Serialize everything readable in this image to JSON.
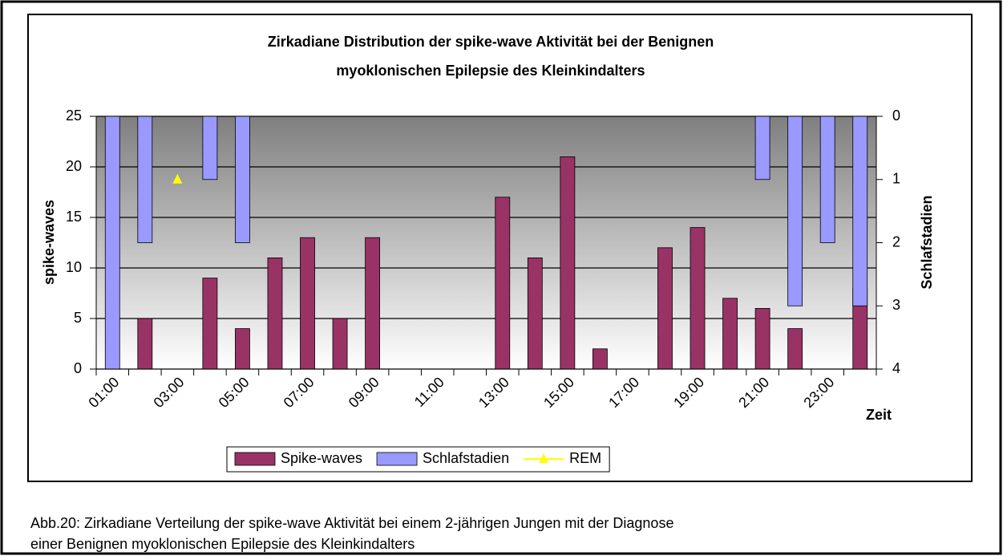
{
  "chart_data": {
    "type": "bar",
    "title": [
      "Zirkadiane Distribution der spike-wave Aktivität bei der Benignen",
      "myoklonischen Epilepsie des Kleinkindalters"
    ],
    "y_label": "spike-waves",
    "y2_label": "Schlafstadien",
    "x_label": "Zeit",
    "categories": [
      "01:00",
      null,
      "03:00",
      null,
      "05:00",
      null,
      "07:00",
      null,
      "09:00",
      null,
      "11:00",
      null,
      "13:00",
      null,
      "15:00",
      null,
      "17:00",
      null,
      "19:00",
      null,
      "21:00",
      null,
      "23:00",
      null
    ],
    "series": [
      {
        "name": "Spike-waves",
        "type": "bar",
        "color": "#993366",
        "values": [
          0,
          5,
          0,
          9,
          4,
          11,
          13,
          5,
          13,
          0,
          0,
          0,
          17,
          11,
          21,
          2,
          0,
          12,
          14,
          7,
          6,
          4,
          0,
          8
        ]
      },
      {
        "name": "Schlafstadien",
        "type": "bar",
        "axis": "y2",
        "color": "#9999ff",
        "values": [
          4,
          2,
          0,
          1,
          2,
          0,
          0,
          0,
          0,
          0,
          0,
          0,
          0,
          0,
          0,
          0,
          0,
          0,
          0,
          0,
          1,
          3,
          2,
          3
        ]
      },
      {
        "name": "REM",
        "type": "line",
        "axis": "y2",
        "color": "#ffff00",
        "values": [
          null,
          null,
          1,
          null,
          null,
          null,
          null,
          null,
          null,
          null,
          null,
          null,
          null,
          null,
          null,
          null,
          null,
          null,
          null,
          null,
          null,
          null,
          null,
          null
        ]
      }
    ],
    "ylim": [
      0,
      25
    ],
    "yticks": [
      0,
      5,
      10,
      15,
      20,
      25
    ],
    "y2lim": [
      4,
      0
    ],
    "y2ticks": [
      0,
      1,
      2,
      3,
      4
    ],
    "grid": true,
    "legend": "bottom",
    "caption": [
      "Abb.20: Zirkadiane Verteilung der spike-wave Aktivität bei einem 2-jährigen Jungen mit der Diagnose",
      "einer Benignen myoklonischen Epilepsie des Kleinkindalters"
    ]
  }
}
